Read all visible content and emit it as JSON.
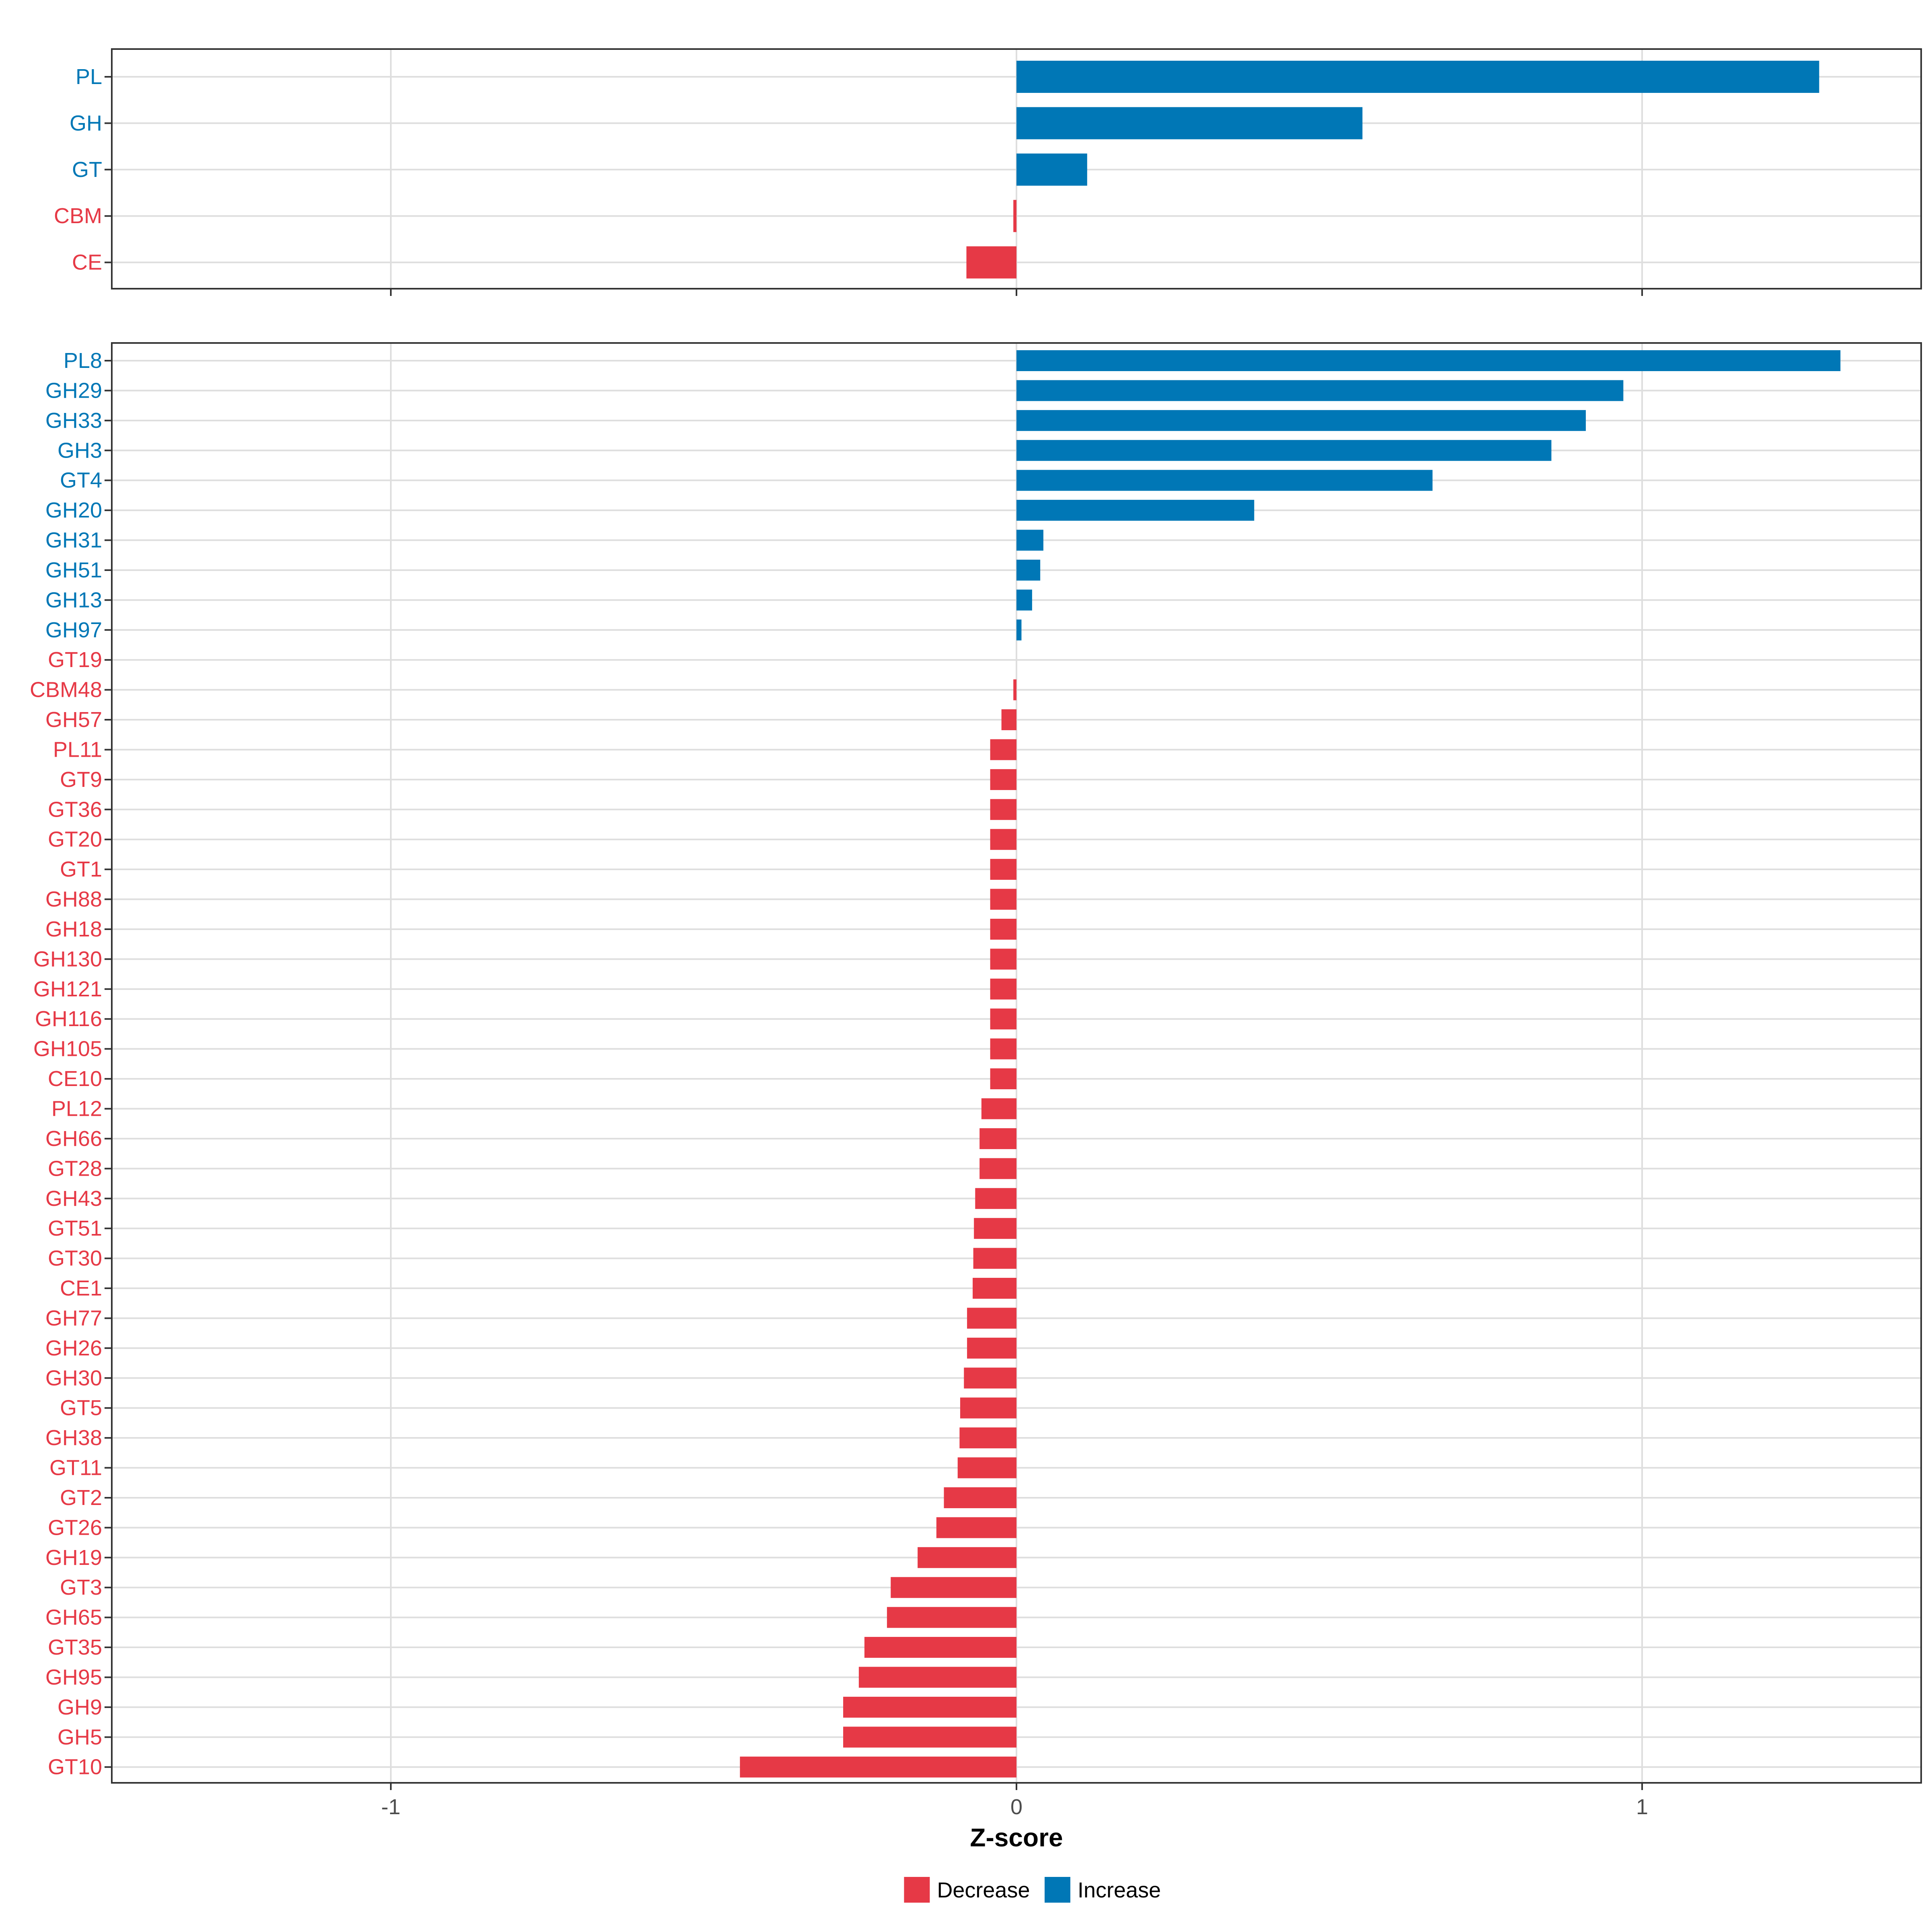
{
  "chart_data": [
    {
      "type": "bar",
      "orientation": "horizontal",
      "panel": "top",
      "title": "",
      "categories": [
        "PL",
        "GH",
        "GT",
        "CBM",
        "CE"
      ],
      "values": [
        1.283,
        0.553,
        0.113,
        -0.005,
        -0.08
      ],
      "directions": [
        "Increase",
        "Increase",
        "Increase",
        "Decrease",
        "Decrease"
      ],
      "xlim": [
        -1.446,
        1.446
      ],
      "xticks": [
        "-1",
        "0",
        "1"
      ],
      "grid": true
    },
    {
      "type": "bar",
      "orientation": "horizontal",
      "panel": "bottom",
      "title": "",
      "categories": [
        "PL8",
        "GH29",
        "GH33",
        "GH3",
        "GT4",
        "GH20",
        "GH31",
        "GH51",
        "GH13",
        "GH97",
        "GT19",
        "CBM48",
        "GH57",
        "PL11",
        "GT9",
        "GT36",
        "GT20",
        "GT1",
        "GH88",
        "GH18",
        "GH130",
        "GH121",
        "GH116",
        "GH105",
        "CE10",
        "PL12",
        "GH66",
        "GT28",
        "GH43",
        "GT51",
        "GT30",
        "CE1",
        "GH77",
        "GH26",
        "GH30",
        "GT5",
        "GH38",
        "GT11",
        "GT2",
        "GT26",
        "GH19",
        "GT3",
        "GH65",
        "GT35",
        "GH95",
        "GH9",
        "GH5",
        "GT10"
      ],
      "values": [
        1.317,
        0.97,
        0.91,
        0.855,
        0.665,
        0.38,
        0.043,
        0.038,
        0.025,
        0.008,
        0.0,
        -0.005,
        -0.024,
        -0.042,
        -0.042,
        -0.042,
        -0.042,
        -0.042,
        -0.042,
        -0.042,
        -0.042,
        -0.042,
        -0.042,
        -0.042,
        -0.042,
        -0.056,
        -0.059,
        -0.059,
        -0.066,
        -0.068,
        -0.069,
        -0.07,
        -0.079,
        -0.079,
        -0.084,
        -0.09,
        -0.091,
        -0.094,
        -0.116,
        -0.128,
        -0.158,
        -0.201,
        -0.207,
        -0.243,
        -0.252,
        -0.277,
        -0.277,
        -0.442
      ],
      "directions": [
        "Increase",
        "Increase",
        "Increase",
        "Increase",
        "Increase",
        "Increase",
        "Increase",
        "Increase",
        "Increase",
        "Increase",
        "Decrease",
        "Decrease",
        "Decrease",
        "Decrease",
        "Decrease",
        "Decrease",
        "Decrease",
        "Decrease",
        "Decrease",
        "Decrease",
        "Decrease",
        "Decrease",
        "Decrease",
        "Decrease",
        "Decrease",
        "Decrease",
        "Decrease",
        "Decrease",
        "Decrease",
        "Decrease",
        "Decrease",
        "Decrease",
        "Decrease",
        "Decrease",
        "Decrease",
        "Decrease",
        "Decrease",
        "Decrease",
        "Decrease",
        "Decrease",
        "Decrease",
        "Decrease",
        "Decrease",
        "Decrease",
        "Decrease",
        "Decrease",
        "Decrease",
        "Decrease"
      ],
      "xlim": [
        -1.446,
        1.446
      ],
      "xticks": [
        "-1",
        "0",
        "1"
      ],
      "xlabel": "Z-score",
      "grid": true
    }
  ],
  "legend": {
    "position": "bottom",
    "items": [
      {
        "label": "Decrease",
        "color": "#E63946"
      },
      {
        "label": "Increase",
        "color": "#0077B6"
      }
    ]
  },
  "colors": {
    "Decrease": "#E63946",
    "Increase": "#0077B6"
  }
}
